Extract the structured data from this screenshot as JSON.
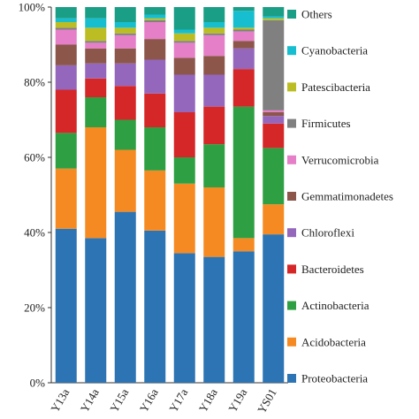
{
  "chart_data": {
    "type": "bar",
    "stacked": true,
    "normalized": true,
    "categories": [
      "Y13a",
      "Y14a",
      "Y15a",
      "Y16a",
      "Y17a",
      "Y18a",
      "Y19a",
      "YS01"
    ],
    "y_ticks": [
      "0%",
      "20%",
      "40%",
      "60%",
      "80%",
      "100%"
    ],
    "ylim": [
      0,
      100
    ],
    "legend_position": "right",
    "series": [
      {
        "name": "Proteobacteria",
        "color": "#2c74b3",
        "values": [
          41.0,
          38.5,
          45.5,
          40.5,
          34.5,
          33.5,
          35.0,
          39.5
        ]
      },
      {
        "name": "Acidobacteria",
        "color": "#f68a22",
        "values": [
          16.0,
          29.5,
          16.5,
          16.0,
          18.5,
          18.5,
          3.5,
          8.0
        ]
      },
      {
        "name": "Actinobacteria",
        "color": "#2ea043",
        "values": [
          9.5,
          8.0,
          8.0,
          11.5,
          7.0,
          11.5,
          35.0,
          15.0
        ]
      },
      {
        "name": "Bacteroidetes",
        "color": "#d62728",
        "values": [
          11.5,
          5.0,
          9.0,
          9.0,
          12.0,
          10.0,
          10.0,
          6.5
        ]
      },
      {
        "name": "Chloroflexi",
        "color": "#9467bd",
        "values": [
          6.5,
          4.0,
          6.0,
          9.0,
          10.0,
          8.5,
          5.5,
          2.0
        ]
      },
      {
        "name": "Gemmatimonadetes",
        "color": "#8c564b",
        "values": [
          5.5,
          4.0,
          4.0,
          5.5,
          4.5,
          5.0,
          2.0,
          1.0
        ]
      },
      {
        "name": "Verrucomicrobia",
        "color": "#e57fc8",
        "values": [
          4.0,
          1.5,
          3.5,
          4.5,
          4.0,
          5.5,
          2.5,
          0.5
        ]
      },
      {
        "name": "Firmicutes",
        "color": "#808080",
        "values": [
          0.5,
          0.5,
          0.5,
          0.5,
          0.5,
          0.5,
          0.5,
          24.0
        ]
      },
      {
        "name": "Patescibacteria",
        "color": "#bcbd22",
        "values": [
          1.5,
          3.5,
          1.5,
          0.5,
          2.0,
          1.5,
          0.5,
          0.5
        ]
      },
      {
        "name": "Cyanobacteria",
        "color": "#17becf",
        "values": [
          1.0,
          2.5,
          1.5,
          1.0,
          1.0,
          1.5,
          4.5,
          0.5
        ]
      },
      {
        "name": "Others",
        "color": "#1a9e85",
        "values": [
          3.0,
          3.0,
          4.0,
          2.0,
          6.0,
          4.0,
          1.0,
          2.5
        ]
      }
    ]
  }
}
